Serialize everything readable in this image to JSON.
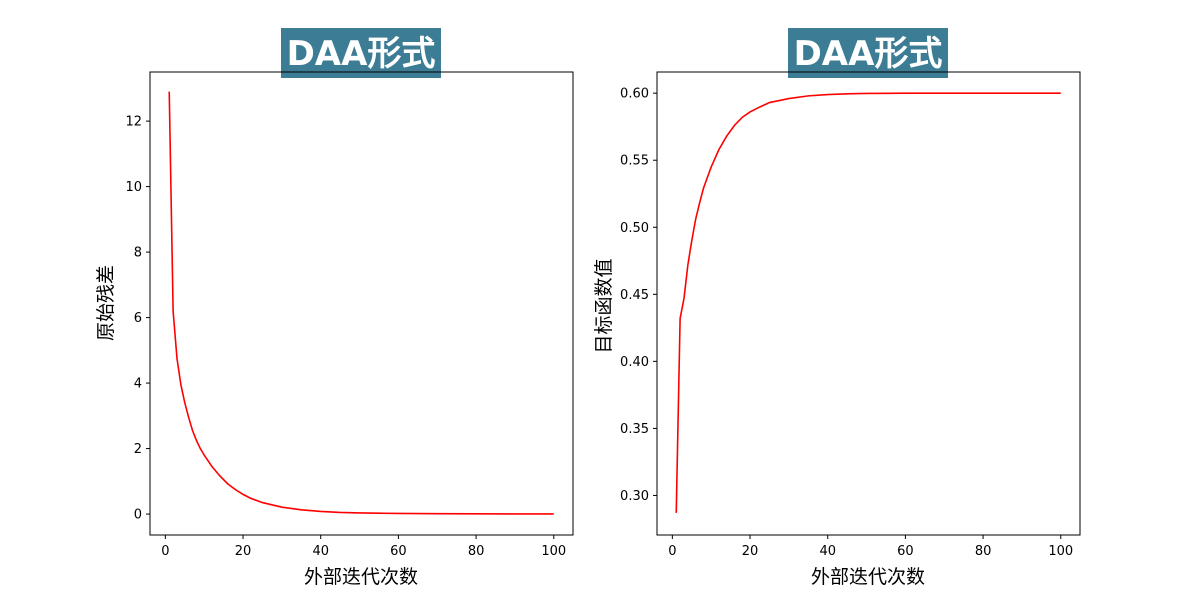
{
  "chart_data": [
    {
      "type": "line",
      "title": "DAA形式",
      "title_bg": "#3c7d95",
      "xlabel": "外部迭代次数",
      "ylabel": "原始残差",
      "xlim": [
        -3.95,
        104.95
      ],
      "ylim": [
        -0.64,
        13.5
      ],
      "xticks": [
        0,
        20,
        40,
        60,
        80,
        100
      ],
      "yticks": [
        0,
        2,
        4,
        6,
        8,
        10,
        12
      ],
      "ytick_labels": [
        "0",
        "2",
        "4",
        "6",
        "8",
        "10",
        "12"
      ],
      "line_color": "#ff0000",
      "series": [
        {
          "x": [
            1,
            2,
            3,
            4,
            5,
            6,
            7,
            8,
            9,
            10,
            12,
            14,
            16,
            18,
            20,
            22,
            25,
            30,
            35,
            40,
            45,
            50,
            55,
            60,
            70,
            80,
            90,
            100
          ],
          "values": [
            12.9,
            6.2,
            4.75,
            3.95,
            3.4,
            2.95,
            2.55,
            2.25,
            2.0,
            1.8,
            1.45,
            1.17,
            0.93,
            0.75,
            0.6,
            0.48,
            0.35,
            0.21,
            0.13,
            0.08,
            0.05,
            0.035,
            0.025,
            0.018,
            0.01,
            0.006,
            0.004,
            0.003
          ]
        }
      ]
    },
    {
      "type": "line",
      "title": "DAA形式",
      "title_bg": "#3c7d95",
      "xlabel": "外部迭代次数",
      "ylabel": "目标函数值",
      "xlim": [
        -3.95,
        104.95
      ],
      "ylim": [
        0.2705,
        0.6158
      ],
      "xticks": [
        0,
        20,
        40,
        60,
        80,
        100
      ],
      "yticks": [
        0.3,
        0.35,
        0.4,
        0.45,
        0.5,
        0.55,
        0.6
      ],
      "ytick_labels": [
        "0.30",
        "0.35",
        "0.40",
        "0.45",
        "0.50",
        "0.55",
        "0.60"
      ],
      "line_color": "#ff0000",
      "series": [
        {
          "x": [
            1,
            2,
            3,
            4,
            5,
            6,
            7,
            8,
            9,
            10,
            12,
            14,
            16,
            18,
            20,
            22,
            25,
            30,
            35,
            40,
            45,
            50,
            60,
            70,
            80,
            90,
            100
          ],
          "values": [
            0.287,
            0.432,
            0.447,
            0.472,
            0.49,
            0.506,
            0.518,
            0.529,
            0.537,
            0.545,
            0.558,
            0.568,
            0.576,
            0.582,
            0.586,
            0.589,
            0.593,
            0.596,
            0.598,
            0.599,
            0.5995,
            0.5998,
            0.6,
            0.6,
            0.6,
            0.6,
            0.6
          ]
        }
      ]
    }
  ]
}
